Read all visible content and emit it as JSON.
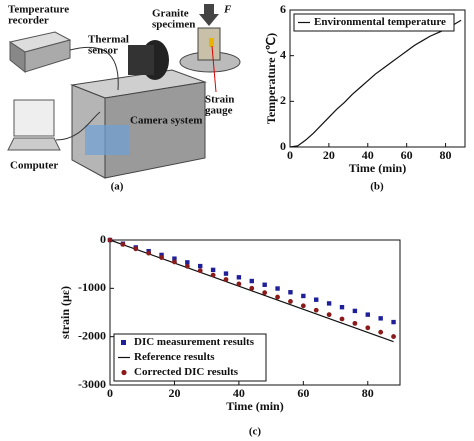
{
  "diagram": {
    "labels": {
      "temperature_recorder": [
        "Temperature",
        "recorder"
      ],
      "thermal_sensor": [
        "Thermal",
        "sensor"
      ],
      "granite_specimen": [
        "Granite",
        "specimen"
      ],
      "force": "F",
      "strain_gauge": [
        "Strain",
        "gauge"
      ],
      "camera_system": "Camera system",
      "computer": "Computer"
    },
    "caption": "(a)"
  },
  "captions": [
    "(b)",
    "(c)"
  ],
  "chart_data": [
    {
      "type": "line",
      "xlabel": "Time (min)",
      "ylabel": "Temperature (℃)",
      "xlim": [
        0,
        90
      ],
      "xticks": [
        0,
        20,
        40,
        60,
        80
      ],
      "ylim": [
        0,
        6
      ],
      "yticks": [
        0,
        2,
        4,
        6
      ],
      "legend": "upper left",
      "x": [
        0,
        4,
        8,
        12,
        16,
        20,
        24,
        28,
        32,
        36,
        40,
        44,
        48,
        52,
        56,
        60,
        64,
        68,
        72,
        76,
        80,
        84,
        88
      ],
      "series": [
        {
          "name": "Environmental temperature",
          "color": "#111111",
          "marker": "none",
          "values": [
            0,
            0.05,
            0.3,
            0.6,
            0.95,
            1.3,
            1.65,
            1.95,
            2.3,
            2.6,
            2.9,
            3.2,
            3.45,
            3.7,
            3.95,
            4.2,
            4.45,
            4.65,
            4.85,
            5.0,
            5.15,
            5.35,
            5.55
          ]
        }
      ]
    },
    {
      "type": "line",
      "xlabel": "Time (min)",
      "ylabel": "strain (με)",
      "xlim": [
        0,
        90
      ],
      "xticks": [
        0,
        20,
        40,
        60,
        80
      ],
      "ylim": [
        -3000,
        0
      ],
      "yticks": [
        0,
        -1000,
        -2000,
        -3000
      ],
      "legend": "lower left",
      "x": [
        0,
        4,
        8,
        12,
        16,
        20,
        24,
        28,
        32,
        36,
        40,
        44,
        48,
        52,
        56,
        60,
        64,
        68,
        72,
        76,
        80,
        84,
        88
      ],
      "series": [
        {
          "name": "DIC measurement results",
          "color": "#1f1f9a",
          "marker": "square",
          "values": [
            0,
            -77,
            -154,
            -232,
            -309,
            -386,
            -463,
            -540,
            -618,
            -695,
            -772,
            -849,
            -926,
            -1004,
            -1081,
            -1158,
            -1235,
            -1312,
            -1390,
            -1467,
            -1544,
            -1621,
            -1698
          ]
        },
        {
          "name": "Reference results",
          "color": "#111111",
          "marker": "none",
          "values": [
            0,
            -96,
            -191,
            -287,
            -382,
            -478,
            -574,
            -669,
            -765,
            -860,
            -956,
            -1052,
            -1147,
            -1243,
            -1338,
            -1434,
            -1530,
            -1625,
            -1721,
            -1816,
            -1912,
            -2008,
            -2103
          ]
        },
        {
          "name": "Corrected DIC results",
          "color": "#8b1a1a",
          "marker": "circle",
          "values": [
            0,
            -91,
            -182,
            -272,
            -363,
            -454,
            -545,
            -636,
            -726,
            -817,
            -908,
            -999,
            -1090,
            -1180,
            -1271,
            -1362,
            -1453,
            -1544,
            -1634,
            -1725,
            -1816,
            -1907,
            -1998
          ]
        }
      ]
    }
  ]
}
